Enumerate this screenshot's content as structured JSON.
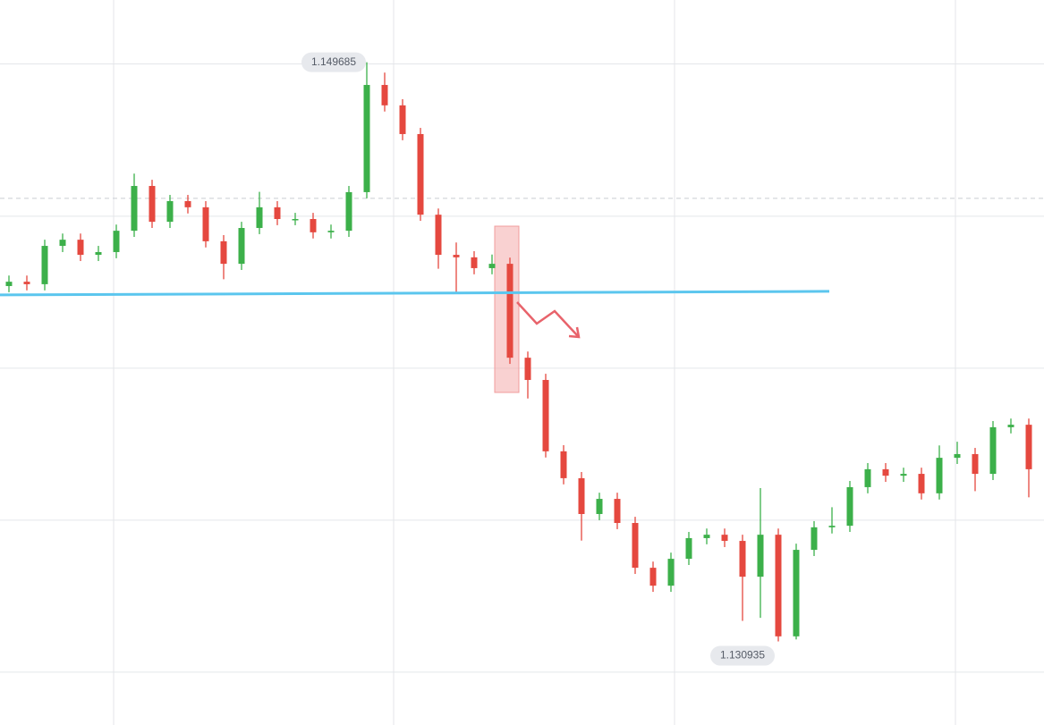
{
  "chart_data": {
    "type": "candlestick",
    "ylim": [
      1.12823,
      1.1517
    ],
    "grid_lines": [
      1.14963,
      1.1447,
      1.13978,
      1.13486,
      1.12994
    ],
    "support_level": 1.14221,
    "current_level": 1.14528,
    "up_color": "#3cb04a",
    "down_color": "#e5483f",
    "support_color": "#5bc6ee",
    "open": [
      1.14244,
      1.14258,
      1.1425,
      1.14374,
      1.14394,
      1.14345,
      1.14354,
      1.14423,
      1.14568,
      1.14452,
      1.14519,
      1.14499,
      1.14389,
      1.14316,
      1.14432,
      1.14499,
      1.14461,
      1.14461,
      1.14418,
      1.14423,
      1.14548,
      1.14895,
      1.14829,
      1.14736,
      1.14475,
      1.14345,
      1.14337,
      1.14302,
      1.14316,
      1.14012,
      1.1394,
      1.13709,
      1.13622,
      1.13506,
      1.13555,
      1.13477,
      1.13332,
      1.13274,
      1.13361,
      1.13428,
      1.13439,
      1.13419,
      1.13303,
      1.13439,
      1.1311,
      1.1339,
      1.13463,
      1.13468,
      1.13593,
      1.13651,
      1.1363,
      1.13636,
      1.13573,
      1.13688,
      1.137,
      1.13636,
      1.13787,
      1.13795
    ],
    "high": [
      1.14278,
      1.14278,
      1.14394,
      1.14414,
      1.14414,
      1.14374,
      1.14443,
      1.14608,
      1.14588,
      1.14539,
      1.14539,
      1.14519,
      1.14409,
      1.14452,
      1.14549,
      1.14519,
      1.14481,
      1.14481,
      1.14443,
      1.14568,
      1.149685,
      1.14935,
      1.14849,
      1.14756,
      1.14495,
      1.14385,
      1.14357,
      1.14346,
      1.14336,
      1.14032,
      1.1396,
      1.13729,
      1.13642,
      1.13575,
      1.13575,
      1.13497,
      1.13352,
      1.13381,
      1.13448,
      1.13459,
      1.13459,
      1.13439,
      1.1359,
      1.13459,
      1.1341,
      1.13483,
      1.13528,
      1.13613,
      1.13671,
      1.13671,
      1.13656,
      1.13656,
      1.13728,
      1.1374,
      1.1372,
      1.13807,
      1.13815,
      1.13815
    ],
    "low": [
      1.14224,
      1.1423,
      1.1423,
      1.14354,
      1.14325,
      1.14325,
      1.14334,
      1.14403,
      1.14432,
      1.14432,
      1.14479,
      1.14369,
      1.14266,
      1.14296,
      1.14412,
      1.14441,
      1.14441,
      1.14398,
      1.14398,
      1.14403,
      1.14528,
      1.14809,
      1.14716,
      1.14455,
      1.143,
      1.1422,
      1.14282,
      1.14282,
      1.13992,
      1.1388,
      1.13689,
      1.13602,
      1.1342,
      1.13486,
      1.13457,
      1.13312,
      1.13254,
      1.13254,
      1.13341,
      1.13408,
      1.13399,
      1.1316,
      1.1317,
      1.130935,
      1.131,
      1.1337,
      1.13443,
      1.13448,
      1.13573,
      1.1361,
      1.1361,
      1.13553,
      1.13553,
      1.13668,
      1.1358,
      1.13616,
      1.13767,
      1.1356
    ],
    "close": [
      1.14258,
      1.1425,
      1.14374,
      1.14394,
      1.14345,
      1.14354,
      1.14423,
      1.14568,
      1.14452,
      1.14519,
      1.14499,
      1.14389,
      1.14316,
      1.14432,
      1.14499,
      1.14461,
      1.14461,
      1.14418,
      1.14423,
      1.14548,
      1.14895,
      1.14829,
      1.14736,
      1.14475,
      1.14345,
      1.14337,
      1.14302,
      1.14316,
      1.14012,
      1.1394,
      1.13709,
      1.13622,
      1.13506,
      1.13555,
      1.13477,
      1.13332,
      1.13274,
      1.13361,
      1.13428,
      1.13439,
      1.13419,
      1.13303,
      1.13439,
      1.1311,
      1.1339,
      1.13463,
      1.13468,
      1.13593,
      1.13651,
      1.1363,
      1.13636,
      1.13573,
      1.13688,
      1.137,
      1.13636,
      1.13787,
      1.13795,
      1.13651
    ]
  }
}
